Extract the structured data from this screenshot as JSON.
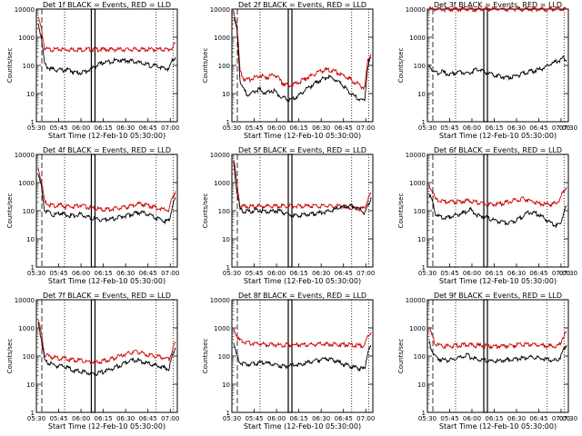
{
  "chart_data": [
    {
      "type": "line",
      "title": "Det 1f BLACK = Events, RED = LLD",
      "xlabel": "Start Time (12-Feb-10 05:30:00)",
      "ylabel": "Counts/sec",
      "yscale": "log",
      "ylim": [
        1,
        10000
      ],
      "x_ticks": [
        "05:30",
        "05:45",
        "06:00",
        "06:15",
        "06:30",
        "06:45",
        "07:00"
      ],
      "y_ticks": [
        "1",
        "10",
        "100",
        "1000",
        "10000"
      ],
      "series": [
        {
          "color": "#cc0000",
          "values": [
            5000,
            2000,
            400,
            370,
            370,
            370,
            370,
            370,
            370,
            370,
            370,
            370,
            370,
            370,
            370,
            370,
            370,
            370,
            370,
            370,
            370,
            370,
            370,
            370,
            370,
            370,
            370,
            370,
            370,
            370,
            370,
            370,
            370,
            370,
            370,
            370,
            370,
            370,
            370,
            370,
            370,
            370,
            420,
            620
          ]
        },
        {
          "color": "#000000",
          "values": [
            3000,
            1000,
            110,
            85,
            75,
            72,
            70,
            70,
            68,
            70,
            68,
            60,
            55,
            55,
            58,
            62,
            70,
            80,
            95,
            110,
            120,
            130,
            135,
            140,
            150,
            155,
            155,
            150,
            150,
            145,
            140,
            135,
            120,
            115,
            110,
            100,
            100,
            95,
            90,
            80,
            75,
            80,
            160,
            200
          ]
        }
      ]
    },
    {
      "type": "line",
      "title": "Det 2f BLACK = Events, RED = LLD",
      "xlabel": "Start Time (12-Feb-10 05:30:00)",
      "ylabel": "Counts/sec",
      "yscale": "log",
      "ylim": [
        1,
        10000
      ],
      "x_ticks": [
        "05:30",
        "05:45",
        "06:00",
        "06:15",
        "06:30",
        "06:45",
        "07:00"
      ],
      "y_ticks": [
        "1",
        "10",
        "100",
        "1000",
        "10000"
      ],
      "series": [
        {
          "color": "#cc0000",
          "values": [
            8000,
            3000,
            60,
            35,
            30,
            32,
            35,
            40,
            45,
            42,
            38,
            40,
            45,
            45,
            35,
            25,
            22,
            20,
            20,
            22,
            25,
            28,
            32,
            38,
            42,
            48,
            55,
            60,
            65,
            70,
            70,
            65,
            60,
            52,
            45,
            40,
            35,
            30,
            25,
            22,
            18,
            15,
            150,
            250
          ]
        },
        {
          "color": "#000000",
          "values": [
            5000,
            2000,
            30,
            15,
            10,
            9,
            11,
            13,
            14,
            12,
            11,
            12,
            13,
            12,
            9,
            7,
            7,
            6,
            6,
            7,
            8,
            10,
            12,
            15,
            18,
            22,
            26,
            30,
            34,
            38,
            38,
            34,
            30,
            25,
            20,
            16,
            12,
            10,
            8,
            7,
            6,
            6,
            100,
            200
          ]
        }
      ]
    },
    {
      "type": "line",
      "title": "Det 3f BLACK = Events, RED = LLD",
      "xlabel": "Start Time (12-Feb-10 05:30:00)",
      "ylabel": "Counts/sec",
      "yscale": "log",
      "ylim": [
        1,
        10000
      ],
      "x_ticks": [
        "05:30",
        "05:45",
        "06:00",
        "06:15",
        "06:30",
        "06:45",
        "07:00",
        "07:30"
      ],
      "y_ticks": [
        "1",
        "10",
        "100",
        "1000",
        "10000"
      ],
      "series": [
        {
          "color": "#cc0000",
          "values": [
            10000,
            10000,
            10000,
            10000,
            10000,
            10000,
            10000,
            10000,
            10000,
            10000,
            10000,
            10000,
            10000,
            10000,
            10000,
            10000,
            10000,
            10000,
            10000,
            10000,
            10000,
            10000,
            10000,
            10000,
            10000,
            10000,
            10000,
            10000,
            10000,
            10000,
            10000,
            10000,
            10000,
            10000,
            10000,
            10000,
            10000,
            10000,
            10000,
            10000,
            10000,
            10000,
            10000,
            10000
          ]
        },
        {
          "color": "#000000",
          "values": [
            100,
            70,
            55,
            55,
            60,
            52,
            50,
            50,
            55,
            58,
            60,
            55,
            50,
            55,
            65,
            75,
            70,
            60,
            55,
            50,
            48,
            45,
            42,
            40,
            38,
            38,
            40,
            42,
            45,
            50,
            55,
            60,
            62,
            65,
            70,
            75,
            85,
            95,
            110,
            125,
            140,
            160,
            185,
            150
          ]
        }
      ]
    },
    {
      "type": "line",
      "title": "Det 4f BLACK = Events, RED = LLD",
      "xlabel": "Start Time (12-Feb-10 05:30:00)",
      "ylabel": "Counts/sec",
      "yscale": "log",
      "ylim": [
        1,
        10000
      ],
      "x_ticks": [
        "05:30",
        "05:45",
        "06:00",
        "06:15",
        "06:30",
        "06:45",
        "07:00"
      ],
      "y_ticks": [
        "1",
        "10",
        "100",
        "1000",
        "10000"
      ],
      "series": [
        {
          "color": "#cc0000",
          "values": [
            3000,
            1200,
            200,
            170,
            160,
            150,
            150,
            160,
            150,
            140,
            140,
            140,
            150,
            160,
            150,
            140,
            130,
            125,
            120,
            115,
            110,
            110,
            112,
            115,
            120,
            125,
            130,
            135,
            140,
            150,
            160,
            170,
            175,
            170,
            160,
            150,
            140,
            130,
            120,
            110,
            105,
            110,
            300,
            500
          ]
        },
        {
          "color": "#000000",
          "values": [
            2000,
            700,
            100,
            90,
            80,
            72,
            75,
            85,
            75,
            70,
            68,
            68,
            72,
            75,
            70,
            62,
            58,
            55,
            52,
            50,
            48,
            48,
            50,
            52,
            55,
            58,
            62,
            66,
            70,
            75,
            80,
            85,
            88,
            85,
            78,
            70,
            62,
            55,
            50,
            46,
            42,
            45,
            150,
            300
          ]
        }
      ]
    },
    {
      "type": "line",
      "title": "Det 5f BLACK = Events, RED = LLD",
      "xlabel": "Start Time (12-Feb-10 05:30:00)",
      "ylabel": "Counts/sec",
      "yscale": "log",
      "ylim": [
        1,
        10000
      ],
      "x_ticks": [
        "05:30",
        "05:45",
        "06:00",
        "06:15",
        "06:30",
        "06:45",
        "07:00"
      ],
      "y_ticks": [
        "1",
        "10",
        "100",
        "1000",
        "10000"
      ],
      "series": [
        {
          "color": "#cc0000",
          "values": [
            7000,
            1000,
            150,
            145,
            145,
            145,
            145,
            145,
            145,
            145,
            145,
            145,
            145,
            145,
            145,
            145,
            145,
            145,
            145,
            145,
            145,
            145,
            145,
            145,
            145,
            145,
            145,
            145,
            145,
            145,
            145,
            145,
            145,
            145,
            145,
            140,
            135,
            130,
            125,
            120,
            120,
            125,
            260,
            400
          ]
        },
        {
          "color": "#000000",
          "values": [
            5000,
            500,
            110,
            100,
            95,
            95,
            100,
            110,
            105,
            100,
            95,
            92,
            95,
            100,
            100,
            95,
            85,
            75,
            70,
            68,
            68,
            70,
            72,
            75,
            78,
            80,
            82,
            85,
            88,
            92,
            98,
            105,
            115,
            125,
            135,
            145,
            150,
            145,
            135,
            120,
            100,
            80,
            150,
            300
          ]
        }
      ]
    },
    {
      "type": "line",
      "title": "Det 6f BLACK = Events, RED = LLD",
      "xlabel": "Start Time (12-Feb-10 05:30:00)",
      "ylabel": "Counts/sec",
      "yscale": "log",
      "ylim": [
        1,
        10000
      ],
      "x_ticks": [
        "05:30",
        "05:45",
        "06:00",
        "06:15",
        "06:30",
        "06:45",
        "07:00",
        "07:30"
      ],
      "y_ticks": [
        "1",
        "10",
        "100",
        "1000",
        "10000"
      ],
      "series": [
        {
          "color": "#cc0000",
          "values": [
            800,
            500,
            260,
            230,
            215,
            210,
            205,
            205,
            210,
            215,
            220,
            230,
            230,
            225,
            215,
            205,
            195,
            185,
            175,
            170,
            168,
            170,
            175,
            185,
            195,
            210,
            225,
            240,
            255,
            265,
            260,
            240,
            220,
            200,
            185,
            175,
            170,
            168,
            170,
            180,
            200,
            260,
            500,
            700
          ]
        },
        {
          "color": "#000000",
          "values": [
            400,
            200,
            80,
            65,
            58,
            55,
            58,
            62,
            68,
            75,
            80,
            85,
            95,
            110,
            85,
            70,
            65,
            62,
            58,
            52,
            48,
            45,
            42,
            40,
            38,
            38,
            40,
            45,
            52,
            62,
            75,
            85,
            90,
            85,
            75,
            65,
            55,
            45,
            38,
            33,
            30,
            32,
            80,
            150
          ]
        }
      ]
    },
    {
      "type": "line",
      "title": "Det 7f BLACK = Events, RED = LLD",
      "xlabel": "Start Time (12-Feb-10 05:30:00)",
      "ylabel": "Counts/sec",
      "yscale": "log",
      "ylim": [
        1,
        10000
      ],
      "x_ticks": [
        "05:30",
        "05:45",
        "06:00",
        "06:15",
        "06:30",
        "06:45",
        "07:00"
      ],
      "y_ticks": [
        "1",
        "10",
        "100",
        "1000",
        "10000"
      ],
      "series": [
        {
          "color": "#cc0000",
          "values": [
            2000,
            600,
            110,
            100,
            95,
            90,
            85,
            85,
            85,
            80,
            75,
            72,
            70,
            70,
            68,
            65,
            62,
            60,
            60,
            62,
            65,
            70,
            75,
            80,
            88,
            95,
            105,
            115,
            125,
            135,
            140,
            140,
            135,
            125,
            115,
            110,
            105,
            100,
            95,
            90,
            85,
            80,
            160,
            300
          ]
        },
        {
          "color": "#000000",
          "values": [
            1500,
            400,
            70,
            60,
            55,
            48,
            45,
            45,
            45,
            40,
            36,
            32,
            30,
            30,
            28,
            26,
            25,
            24,
            24,
            25,
            27,
            30,
            33,
            36,
            40,
            45,
            50,
            56,
            62,
            68,
            72,
            72,
            68,
            62,
            56,
            52,
            48,
            45,
            42,
            40,
            38,
            36,
            100,
            200
          ]
        }
      ]
    },
    {
      "type": "line",
      "title": "Det 8f BLACK = Events, RED = LLD",
      "xlabel": "Start Time (12-Feb-10 05:30:00)",
      "ylabel": "Counts/sec",
      "yscale": "log",
      "ylim": [
        1,
        10000
      ],
      "x_ticks": [
        "05:30",
        "05:45",
        "06:00",
        "06:15",
        "06:30",
        "06:45",
        "07:00"
      ],
      "y_ticks": [
        "1",
        "10",
        "100",
        "1000",
        "10000"
      ],
      "series": [
        {
          "color": "#cc0000",
          "values": [
            1000,
            500,
            350,
            320,
            300,
            290,
            280,
            275,
            270,
            265,
            262,
            260,
            258,
            255,
            252,
            250,
            250,
            250,
            250,
            250,
            250,
            250,
            252,
            255,
            258,
            260,
            262,
            265,
            268,
            270,
            270,
            268,
            265,
            262,
            260,
            258,
            255,
            250,
            245,
            240,
            235,
            240,
            500,
            700
          ]
        },
        {
          "color": "#000000",
          "values": [
            300,
            100,
            60,
            55,
            52,
            50,
            52,
            55,
            58,
            60,
            58,
            55,
            50,
            48,
            46,
            45,
            44,
            45,
            46,
            48,
            50,
            52,
            55,
            58,
            62,
            66,
            70,
            75,
            80,
            82,
            80,
            75,
            68,
            60,
            55,
            50,
            46,
            42,
            40,
            38,
            36,
            35,
            150,
            220
          ]
        }
      ]
    },
    {
      "type": "line",
      "title": "Det 9f BLACK = Events, RED = LLD",
      "xlabel": "Start Time (12-Feb-10 05:30:00)",
      "ylabel": "Counts/sec",
      "yscale": "log",
      "ylim": [
        1,
        10000
      ],
      "x_ticks": [
        "05:30",
        "05:45",
        "06:00",
        "06:15",
        "06:30",
        "06:45",
        "07:00",
        "07:30"
      ],
      "y_ticks": [
        "1",
        "10",
        "100",
        "1000",
        "10000"
      ],
      "series": [
        {
          "color": "#cc0000",
          "values": [
            1000,
            500,
            260,
            240,
            230,
            225,
            225,
            230,
            235,
            240,
            245,
            250,
            255,
            250,
            245,
            240,
            235,
            230,
            228,
            225,
            225,
            225,
            228,
            230,
            235,
            240,
            245,
            250,
            255,
            260,
            262,
            262,
            260,
            255,
            250,
            245,
            240,
            235,
            230,
            228,
            230,
            260,
            500,
            700
          ]
        },
        {
          "color": "#000000",
          "values": [
            300,
            150,
            90,
            80,
            75,
            72,
            72,
            75,
            80,
            85,
            90,
            95,
            110,
            90,
            82,
            78,
            75,
            72,
            70,
            68,
            66,
            66,
            68,
            70,
            72,
            75,
            78,
            80,
            82,
            85,
            88,
            90,
            90,
            88,
            85,
            82,
            78,
            75,
            72,
            70,
            72,
            90,
            160,
            250
          ]
        }
      ]
    }
  ]
}
